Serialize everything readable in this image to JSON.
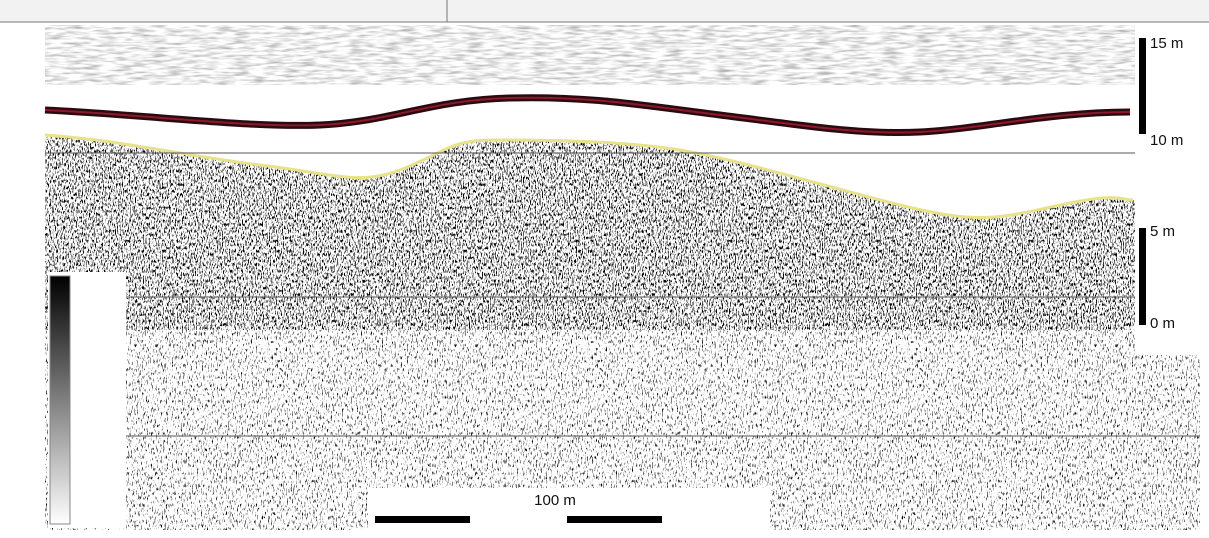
{
  "vertical_scale": {
    "labels": [
      "15 m",
      "10 m",
      "5 m",
      "0 m"
    ]
  },
  "horizontal_scale": {
    "label": "100 m"
  }
}
